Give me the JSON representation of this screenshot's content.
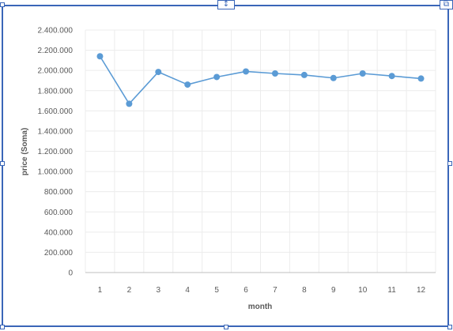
{
  "toolbar": {
    "insert_icon_glyph": "↕",
    "edit_icon_glyph": "⧉"
  },
  "colors": {
    "frame": "#3a66b8",
    "series": "#5b9bd5",
    "grid": "#ececec",
    "axis": "#bfbfbf",
    "text": "#595959"
  },
  "chart_data": {
    "type": "line",
    "title": "",
    "xlabel": "month",
    "ylabel": "price (Soma)",
    "categories": [
      "1",
      "2",
      "3",
      "4",
      "5",
      "6",
      "7",
      "8",
      "9",
      "10",
      "11",
      "12"
    ],
    "series": [
      {
        "values": [
          2140000,
          1670000,
          1985000,
          1860000,
          1935000,
          1990000,
          1970000,
          1955000,
          1925000,
          1970000,
          1945000,
          1920000
        ]
      }
    ],
    "ylim": [
      0,
      2400000
    ],
    "ytick_labels": [
      "0",
      "200.000",
      "400.000",
      "600.000",
      "800.000",
      "1.000.000",
      "1.200.000",
      "1.400.000",
      "1.600.000",
      "1.800.000",
      "2.000.000",
      "2.200.000",
      "2.400.000"
    ],
    "grid": true,
    "legend": "none",
    "markers": true
  }
}
